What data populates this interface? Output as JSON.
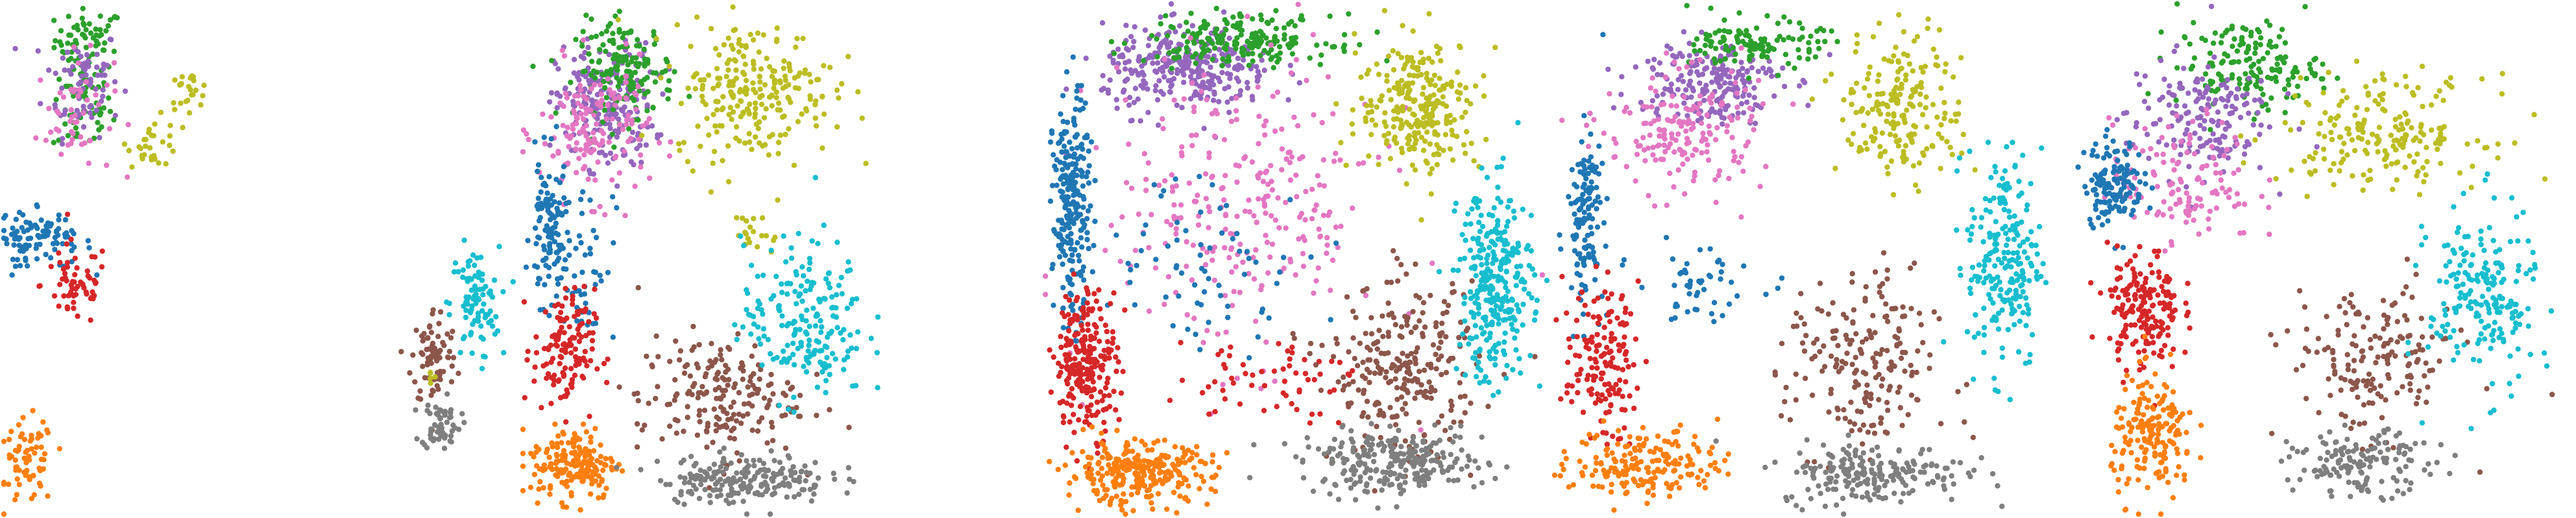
{
  "figure": {
    "background": "#ffffff",
    "marker_radius": 4.2
  },
  "palette": {
    "c0": "#1f77b4",
    "c1": "#ff7f0e",
    "c2": "#2ca02c",
    "c3": "#d62728",
    "c4": "#9467bd",
    "c5": "#8c564b",
    "c6": "#e377c2",
    "c7": "#7f7f7f",
    "c8": "#bcbd22",
    "c9": "#17becf"
  },
  "chart_data": [
    {
      "type": "scatter",
      "title": "",
      "xlabel": "",
      "ylabel": "",
      "axes_visible": false,
      "grid": false,
      "legend": "none",
      "xlim": [
        0,
        100
      ],
      "ylim": [
        0,
        100
      ],
      "series": [
        {
          "color_key": "c2",
          "blobs": [
            [
              24,
              93,
              8,
              5,
              60
            ],
            [
              22,
              80,
              7,
              8,
              60
            ]
          ]
        },
        {
          "color_key": "c4",
          "blobs": [
            [
              22,
              85,
              9,
              9,
              70
            ]
          ]
        },
        {
          "color_key": "c6",
          "blobs": [
            [
              20,
              78,
              9,
              10,
              50
            ]
          ]
        },
        {
          "color_key": "c0",
          "blobs": [
            [
              6,
              55,
              6,
              4,
              50
            ],
            [
              14,
              53,
              9,
              4,
              50
            ]
          ]
        },
        {
          "color_key": "c3",
          "blobs": [
            [
              20,
              45,
              8,
              7,
              60
            ]
          ]
        },
        {
          "color_key": "c1",
          "blobs": [
            [
              7,
              10,
              6,
              7,
              70
            ]
          ]
        },
        {
          "color_key": "c8",
          "blobs": [
            [
              42,
              73,
              6,
              4,
              30
            ],
            [
              52,
              83,
              5,
              3,
              25
            ]
          ]
        }
      ]
    },
    {
      "type": "scatter",
      "title": "",
      "xlabel": "",
      "ylabel": "",
      "axes_visible": false,
      "grid": false,
      "legend": "none",
      "xlim": [
        0,
        100
      ],
      "ylim": [
        0,
        100
      ],
      "series": [
        {
          "color_key": "c9",
          "blobs": [
            [
              70,
              60,
              15,
              18,
              90
            ]
          ]
        },
        {
          "color_key": "c5",
          "blobs": [
            [
              40,
              40,
              14,
              16,
              80
            ]
          ]
        },
        {
          "color_key": "c7",
          "blobs": [
            [
              45,
              15,
              12,
              8,
              60
            ]
          ]
        },
        {
          "color_key": "c8",
          "blobs": [
            [
              37,
              32,
              3,
              3,
              5
            ]
          ]
        }
      ]
    },
    {
      "type": "scatter",
      "title": "",
      "xlabel": "",
      "ylabel": "",
      "axes_visible": false,
      "grid": false,
      "legend": "none",
      "xlim": [
        0,
        100
      ],
      "ylim": [
        0,
        100
      ],
      "series": [
        {
          "color_key": "c4",
          "blobs": [
            [
              16,
              80,
              8,
              10,
              220
            ]
          ]
        },
        {
          "color_key": "c2",
          "blobs": [
            [
              20,
              87,
              8,
              8,
              160
            ]
          ]
        },
        {
          "color_key": "c6",
          "blobs": [
            [
              14,
              75,
              9,
              11,
              150
            ]
          ]
        },
        {
          "color_key": "c0",
          "blobs": [
            [
              5,
              55,
              3,
              12,
              110
            ],
            [
              12,
              50,
              5,
              14,
              50
            ]
          ]
        },
        {
          "color_key": "c3",
          "blobs": [
            [
              8,
              32,
              5,
              10,
              130
            ]
          ]
        },
        {
          "color_key": "c1",
          "blobs": [
            [
              10,
              10,
              7,
              6,
              180
            ]
          ]
        },
        {
          "color_key": "c8",
          "blobs": [
            [
              45,
              83,
              13,
              11,
              240
            ],
            [
              46,
              55,
              4,
              4,
              20
            ]
          ]
        },
        {
          "color_key": "c5",
          "blobs": [
            [
              38,
              23,
              13,
              10,
              200
            ]
          ]
        },
        {
          "color_key": "c9",
          "blobs": [
            [
              55,
              38,
              10,
              13,
              200
            ]
          ]
        },
        {
          "color_key": "c7",
          "blobs": [
            [
              43,
              7,
              14,
              4,
              200
            ]
          ]
        }
      ]
    },
    {
      "type": "scatter",
      "title": "",
      "xlabel": "",
      "ylabel": "",
      "axes_visible": false,
      "grid": false,
      "legend": "none",
      "xlim": [
        0,
        100
      ],
      "ylim": [
        0,
        100
      ],
      "series": [
        {
          "color_key": "c4",
          "blobs": [
            [
              30,
              87,
              14,
              7,
              300
            ]
          ]
        },
        {
          "color_key": "c2",
          "blobs": [
            [
              40,
              93,
              15,
              4,
              200
            ]
          ]
        },
        {
          "color_key": "c6",
          "blobs": [
            [
              40,
              60,
              23,
              24,
              280
            ]
          ]
        },
        {
          "color_key": "c0",
          "blobs": [
            [
              7,
              60,
              3,
              18,
              240
            ],
            [
              33,
              50,
              18,
              14,
              70
            ]
          ]
        },
        {
          "color_key": "c3",
          "blobs": [
            [
              10,
              30,
              5,
              12,
              240
            ],
            [
              45,
              27,
              15,
              7,
              60
            ]
          ]
        },
        {
          "color_key": "c1",
          "blobs": [
            [
              20,
              8,
              12,
              5,
              280
            ]
          ]
        },
        {
          "color_key": "c8",
          "blobs": [
            [
              75,
              80,
              10,
              11,
              260
            ]
          ]
        },
        {
          "color_key": "c5",
          "blobs": [
            [
              72,
              28,
              12,
              14,
              260
            ]
          ]
        },
        {
          "color_key": "c9",
          "blobs": [
            [
              90,
              45,
              6,
              16,
              300
            ]
          ]
        },
        {
          "color_key": "c7",
          "blobs": [
            [
              70,
              10,
              15,
              5,
              260
            ]
          ]
        }
      ]
    },
    {
      "type": "scatter",
      "title": "",
      "xlabel": "",
      "ylabel": "",
      "axes_visible": false,
      "grid": false,
      "legend": "none",
      "xlim": [
        0,
        100
      ],
      "ylim": [
        0,
        100
      ],
      "series": [
        {
          "color_key": "c4",
          "blobs": [
            [
              30,
              85,
              12,
              7,
              200
            ]
          ]
        },
        {
          "color_key": "c2",
          "blobs": [
            [
              40,
              92,
              10,
              4,
              120
            ]
          ]
        },
        {
          "color_key": "c6",
          "blobs": [
            [
              25,
              75,
              13,
              10,
              180
            ]
          ]
        },
        {
          "color_key": "c0",
          "blobs": [
            [
              6,
              58,
              3,
              14,
              130
            ],
            [
              28,
              45,
              10,
              6,
              50
            ]
          ]
        },
        {
          "color_key": "c3",
          "blobs": [
            [
              9,
              30,
              6,
              12,
              150
            ]
          ]
        },
        {
          "color_key": "c1",
          "blobs": [
            [
              18,
              10,
              12,
              6,
              180
            ]
          ]
        },
        {
          "color_key": "c8",
          "blobs": [
            [
              68,
              80,
              10,
              12,
              200
            ]
          ]
        },
        {
          "color_key": "c5",
          "blobs": [
            [
              60,
              28,
              12,
              16,
              200
            ]
          ]
        },
        {
          "color_key": "c9",
          "blobs": [
            [
              88,
              50,
              6,
              18,
              220
            ]
          ]
        },
        {
          "color_key": "c7",
          "blobs": [
            [
              62,
              8,
              15,
              5,
              200
            ]
          ]
        }
      ]
    },
    {
      "type": "scatter",
      "title": "",
      "xlabel": "",
      "ylabel": "",
      "axes_visible": false,
      "grid": false,
      "legend": "none",
      "xlim": [
        0,
        100
      ],
      "ylim": [
        0,
        100
      ],
      "series": [
        {
          "color_key": "c2",
          "blobs": [
            [
              35,
              88,
              12,
              7,
              160
            ]
          ]
        },
        {
          "color_key": "c4",
          "blobs": [
            [
              25,
              78,
              12,
              10,
              170
            ]
          ]
        },
        {
          "color_key": "c6",
          "blobs": [
            [
              22,
              65,
              12,
              10,
              130
            ]
          ]
        },
        {
          "color_key": "c0",
          "blobs": [
            [
              8,
              65,
              5,
              7,
              140
            ]
          ]
        },
        {
          "color_key": "c3",
          "blobs": [
            [
              14,
              40,
              6,
              10,
              180
            ]
          ]
        },
        {
          "color_key": "c1",
          "blobs": [
            [
              16,
              15,
              7,
              10,
              180
            ]
          ]
        },
        {
          "color_key": "c8",
          "blobs": [
            [
              62,
              75,
              17,
              9,
              200
            ]
          ]
        },
        {
          "color_key": "c5",
          "blobs": [
            [
              60,
              30,
              14,
              12,
              170
            ]
          ]
        },
        {
          "color_key": "c9",
          "blobs": [
            [
              82,
              42,
              9,
              15,
              200
            ]
          ]
        },
        {
          "color_key": "c7",
          "blobs": [
            [
              58,
              10,
              12,
              5,
              150
            ]
          ]
        }
      ]
    }
  ]
}
